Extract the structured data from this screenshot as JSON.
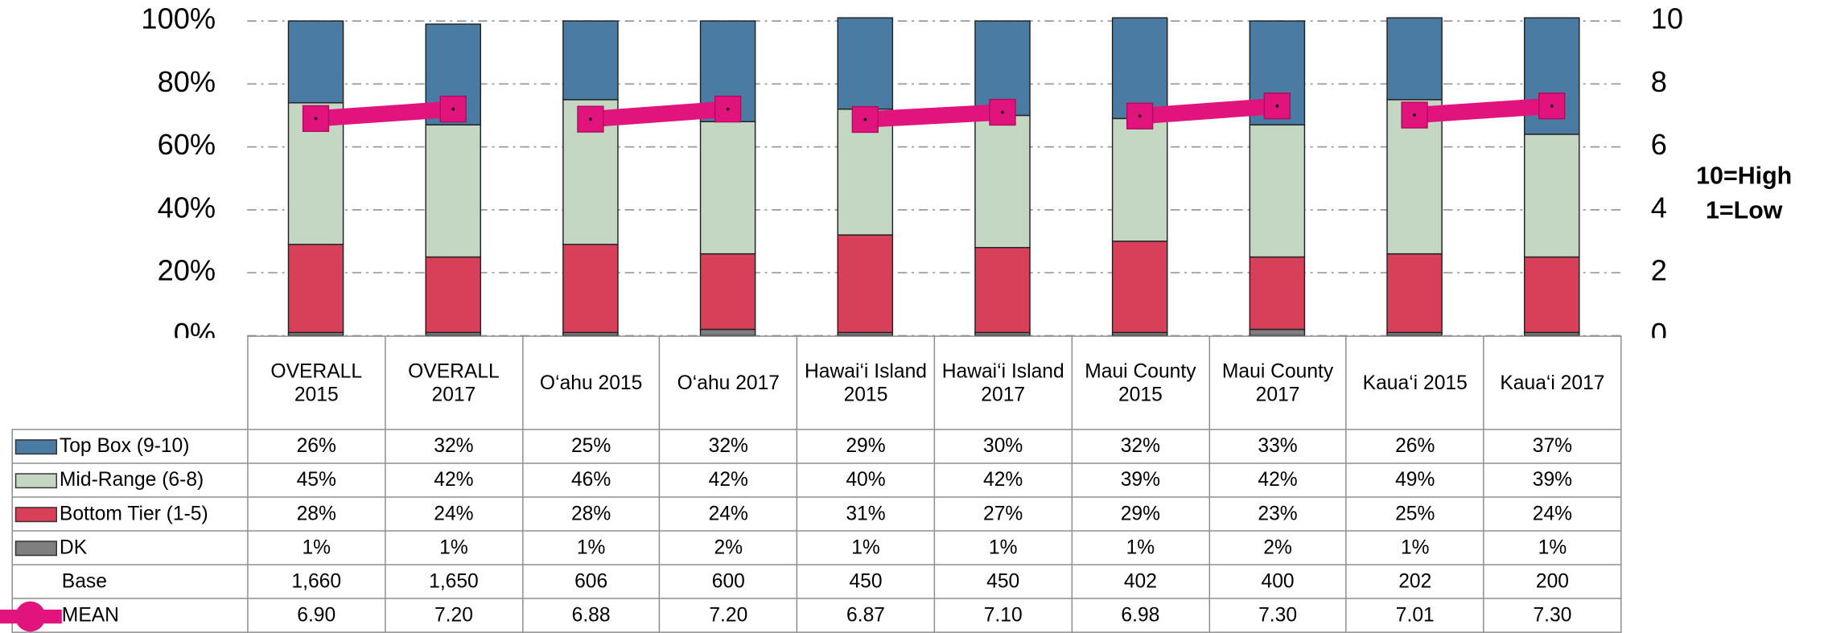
{
  "chart_data": {
    "type": "bar",
    "stacked": true,
    "categories": [
      "OVERALL 2015",
      "OVERALL 2017",
      "O‘ahu 2015",
      "O‘ahu 2017",
      "Hawai‘i Island 2015",
      "Hawai‘i Island 2017",
      "Maui County 2015",
      "Maui County 2017",
      "Kaua‘i 2015",
      "Kaua‘i 2017"
    ],
    "series": [
      {
        "name": "Top Box (9-10)",
        "color": "#4a7ca3",
        "values": [
          26,
          32,
          25,
          32,
          29,
          30,
          32,
          33,
          26,
          37
        ],
        "value_labels": [
          "26%",
          "32%",
          "25%",
          "32%",
          "29%",
          "30%",
          "32%",
          "33%",
          "26%",
          "37%"
        ]
      },
      {
        "name": "Mid-Range (6-8)",
        "color": "#c3d7c2",
        "values": [
          45,
          42,
          46,
          42,
          40,
          42,
          39,
          42,
          49,
          39
        ],
        "value_labels": [
          "45%",
          "42%",
          "46%",
          "42%",
          "40%",
          "42%",
          "39%",
          "42%",
          "49%",
          "39%"
        ]
      },
      {
        "name": "Bottom Tier (1-5)",
        "color": "#d8405a",
        "values": [
          28,
          24,
          28,
          24,
          31,
          27,
          29,
          23,
          25,
          24
        ],
        "value_labels": [
          "28%",
          "24%",
          "28%",
          "24%",
          "31%",
          "27%",
          "29%",
          "23%",
          "25%",
          "24%"
        ]
      },
      {
        "name": "DK",
        "color": "#7f7f7f",
        "values": [
          1,
          1,
          1,
          2,
          1,
          1,
          1,
          2,
          1,
          1
        ],
        "value_labels": [
          "1%",
          "1%",
          "1%",
          "2%",
          "1%",
          "1%",
          "1%",
          "2%",
          "1%",
          "1%"
        ]
      }
    ],
    "base": {
      "name": "Base",
      "labels": [
        "1,660",
        "1,650",
        "606",
        "600",
        "450",
        "450",
        "402",
        "400",
        "202",
        "200"
      ]
    },
    "mean": {
      "name": "MEAN",
      "type": "line",
      "axis": "y2",
      "color": "#e0147c",
      "values": [
        6.9,
        7.2,
        6.88,
        7.2,
        6.87,
        7.1,
        6.98,
        7.3,
        7.01,
        7.3
      ],
      "value_labels": [
        "6.90",
        "7.20",
        "6.88",
        "7.20",
        "6.87",
        "7.10",
        "6.98",
        "7.30",
        "7.01",
        "7.30"
      ]
    },
    "ylim": [
      0,
      100
    ],
    "yticks": [
      {
        "value": 0,
        "label": "0%"
      },
      {
        "value": 20,
        "label": "20%"
      },
      {
        "value": 40,
        "label": "40%"
      },
      {
        "value": 60,
        "label": "60%"
      },
      {
        "value": 80,
        "label": "80%"
      },
      {
        "value": 100,
        "label": "100%"
      }
    ],
    "y2lim": [
      0,
      10
    ],
    "y2ticks": [
      0,
      2,
      4,
      6,
      8,
      10
    ],
    "y2label": [
      "10=High",
      "1=Low"
    ],
    "grid": true
  }
}
